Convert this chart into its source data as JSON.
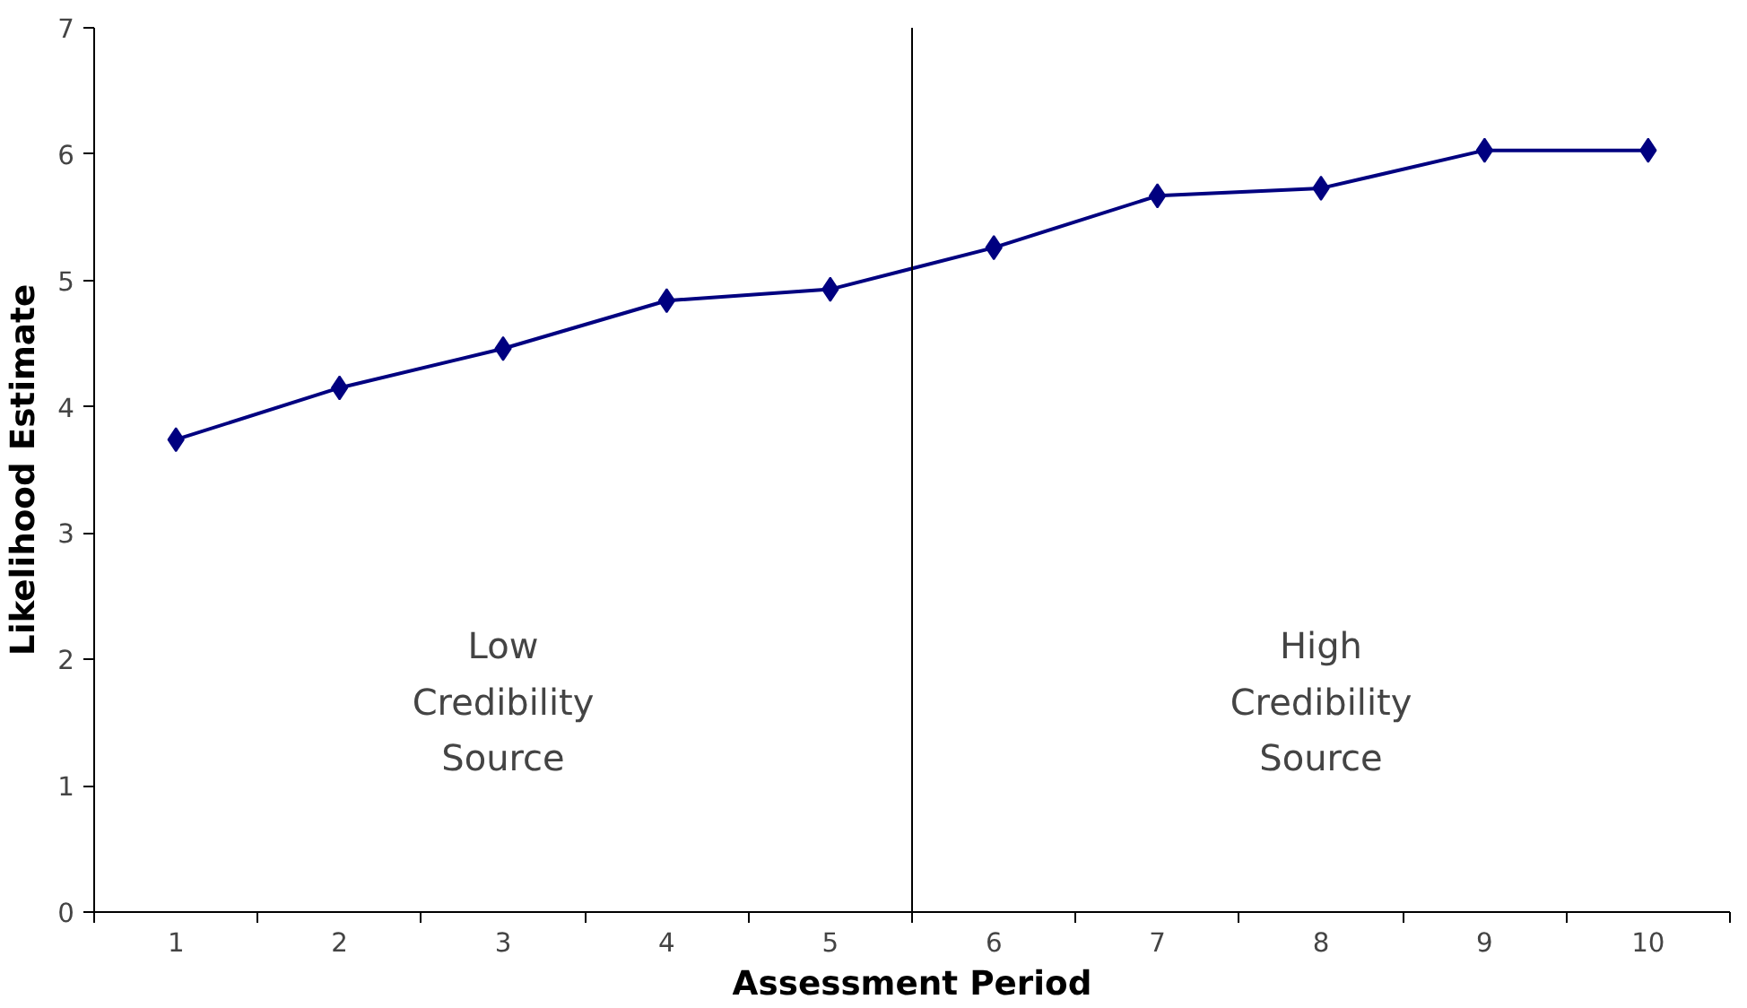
{
  "chart_data": {
    "type": "line",
    "xlabel": "Assessment Period",
    "ylabel": "Likelihood Estimate",
    "categories": [
      "1",
      "2",
      "3",
      "4",
      "5",
      "6",
      "7",
      "8",
      "9",
      "10"
    ],
    "series": [
      {
        "color": "#000080",
        "values": [
          3.74,
          4.15,
          4.46,
          4.84,
          4.93,
          5.26,
          5.67,
          5.73,
          6.03,
          6.03
        ]
      }
    ],
    "ylim": [
      0,
      7
    ],
    "yticks": [
      0,
      1,
      2,
      3,
      4,
      5,
      6,
      7
    ],
    "marker": "diamond",
    "line_style": "solid",
    "grid": false,
    "annotations": [
      "Low\nCredibility\nSource",
      "High\nCredibility\nSource"
    ]
  }
}
